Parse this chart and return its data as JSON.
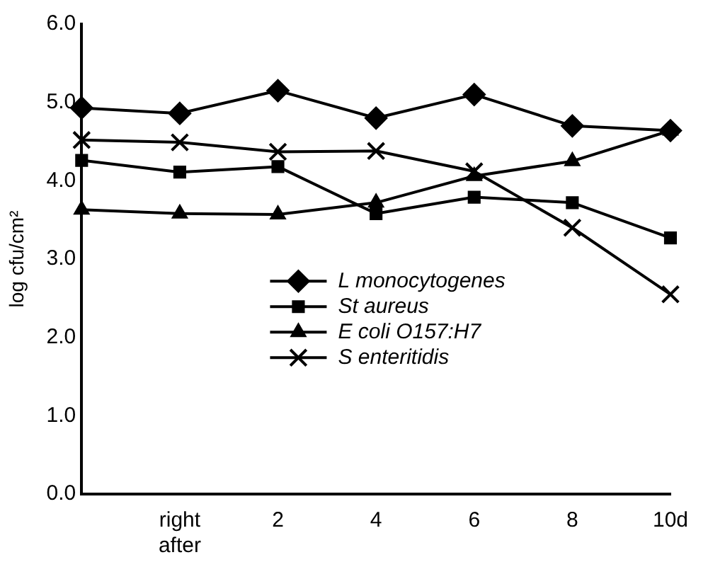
{
  "chart_data": {
    "type": "line",
    "ylabel": "log cfu/cm²",
    "categories": [
      null,
      "right after",
      "2",
      "4",
      "6",
      "8",
      "10d"
    ],
    "series": [
      {
        "name": "L monocytogenes",
        "color": "#000000",
        "marker": "diamond",
        "values": [
          4.93,
          4.86,
          5.15,
          4.8,
          5.1,
          4.7,
          4.64
        ]
      },
      {
        "name": "St aureus",
        "color": "#000000",
        "marker": "square",
        "values": [
          4.26,
          4.11,
          4.18,
          3.58,
          3.79,
          3.72,
          3.27
        ]
      },
      {
        "name": "E coli O157:H7",
        "color": "#000000",
        "marker": "triangle",
        "values": [
          3.63,
          3.58,
          3.57,
          3.72,
          4.06,
          4.25,
          4.64
        ]
      },
      {
        "name": "S enteritidis",
        "color": "#000000",
        "marker": "cross",
        "values": [
          4.52,
          4.49,
          4.37,
          4.38,
          4.12,
          3.4,
          2.55
        ]
      }
    ],
    "ylim": [
      0,
      6
    ],
    "yticks": [
      {
        "value": 0,
        "label": "0.0"
      },
      {
        "value": 1,
        "label": "1.0"
      },
      {
        "value": 2,
        "label": "2.0"
      },
      {
        "value": 3,
        "label": "3.0"
      },
      {
        "value": 4,
        "label": "4.0"
      },
      {
        "value": 5,
        "label": "5.0"
      },
      {
        "value": 6,
        "label": "6.0"
      }
    ],
    "grid": false,
    "legend": "bottom",
    "line_style": "solid"
  }
}
